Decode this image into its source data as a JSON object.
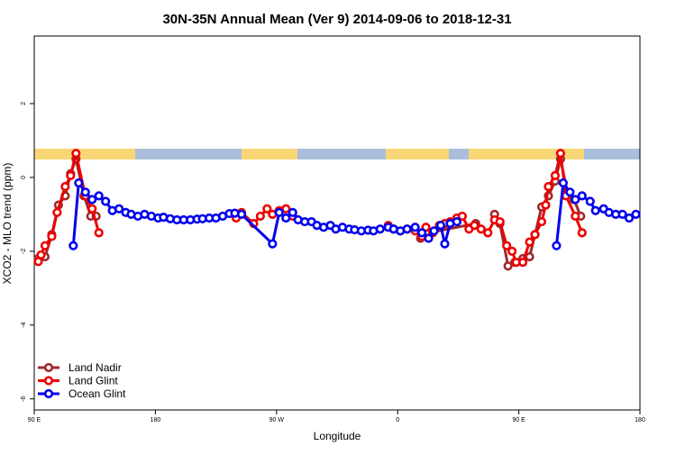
{
  "chart_data": {
    "type": "line",
    "title": "30N-35N Annual Mean (Ver 9)   2014-09-06 to 2018-12-31",
    "x_label": "Longitude",
    "y_label": "XCO2 - MLO trend (ppm)",
    "xlim": [
      90,
      540
    ],
    "ylim": [
      -6.3,
      3.83
    ],
    "xticks": [
      {
        "value": 90,
        "label": "90 E"
      },
      180,
      {
        "value": 270,
        "label": "90 W"
      },
      {
        "value": 360,
        "label": "0"
      },
      {
        "value": 450,
        "label": "90 E"
      },
      {
        "value": 540,
        "label": "180"
      }
    ],
    "yticks": [
      -6,
      -4,
      -2,
      0,
      2
    ],
    "legend": "bottom-left",
    "series": [
      {
        "name": "Land Nadir",
        "color": "#a0282d",
        "x": [
          93,
          98,
          103,
          108,
          113,
          117,
          121,
          127,
          132,
          136,
          300,
          377,
          383,
          418,
          425,
          432,
          436,
          442,
          447,
          453,
          458,
          462,
          467,
          472,
          477,
          481,
          486,
          491,
          496
        ],
        "values": [
          -2.2,
          -2.15,
          -1.55,
          -0.75,
          -0.5,
          0.1,
          0.5,
          -0.5,
          -1.05,
          -1.05,
          null,
          -1.65,
          -1.5,
          -1.25,
          null,
          -1.0,
          -1.25,
          -2.4,
          -2.3,
          -2.2,
          -2.15,
          -1.55,
          -0.8,
          -0.5,
          -0.1,
          0.5,
          -0.4,
          -0.6,
          -1.05
        ]
      },
      {
        "name": "Land Glint",
        "color": "#ee0000",
        "x": [
          93,
          95,
          98,
          103,
          107,
          113,
          117,
          121,
          128,
          133,
          138,
          190,
          240,
          244,
          253,
          258,
          263,
          267,
          272,
          277,
          282,
          320,
          353,
          357,
          362,
          367,
          373,
          378,
          381,
          386,
          391,
          395,
          399,
          404,
          408,
          413,
          417,
          422,
          427,
          432,
          436,
          441,
          445,
          448,
          453,
          458,
          462,
          467,
          470,
          472,
          477,
          481,
          485,
          492,
          497
        ],
        "values": [
          -2.28,
          -2.1,
          -1.85,
          -1.6,
          -0.95,
          -0.25,
          0.05,
          0.65,
          -0.5,
          -0.85,
          -1.5,
          null,
          -1.1,
          -0.95,
          -1.25,
          -1.05,
          -0.85,
          -1.0,
          -0.9,
          -0.85,
          -1.05,
          null,
          -1.3,
          -1.4,
          -1.45,
          -1.4,
          -1.45,
          -1.6,
          -1.35,
          -1.5,
          -1.3,
          -1.25,
          -1.2,
          -1.1,
          -1.05,
          -1.4,
          -1.3,
          -1.4,
          -1.5,
          -1.15,
          -1.2,
          -1.85,
          -2.0,
          -2.3,
          -2.3,
          -1.75,
          -1.55,
          -1.2,
          -0.75,
          -0.25,
          0.05,
          0.65,
          -0.5,
          -1.05,
          -1.5
        ]
      },
      {
        "name": "Ocean Glint",
        "color": "#0000ee",
        "x": [
          119,
          123,
          128,
          133,
          138,
          143,
          148,
          153,
          158,
          162,
          167,
          172,
          177,
          182,
          186,
          191,
          196,
          201,
          206,
          211,
          215,
          220,
          225,
          230,
          235,
          239,
          244,
          267,
          272,
          277,
          282,
          286,
          291,
          296,
          300,
          305,
          310,
          314,
          319,
          324,
          328,
          333,
          338,
          342,
          347,
          353,
          357,
          362,
          367,
          373,
          378,
          383,
          387,
          392,
          395,
          399,
          404,
          440,
          478,
          483,
          488,
          492,
          497,
          503,
          507,
          513,
          517,
          522,
          527,
          532,
          537
        ],
        "values": [
          -1.85,
          -0.15,
          -0.4,
          -0.6,
          -0.5,
          -0.65,
          -0.9,
          -0.85,
          -0.95,
          -1.0,
          -1.05,
          -1.0,
          -1.05,
          -1.1,
          -1.08,
          -1.12,
          -1.15,
          -1.15,
          -1.15,
          -1.13,
          -1.12,
          -1.1,
          -1.1,
          -1.05,
          -0.98,
          -0.97,
          -1.0,
          -1.8,
          -0.95,
          -1.1,
          -0.95,
          -1.15,
          -1.2,
          -1.2,
          -1.3,
          -1.35,
          -1.3,
          -1.4,
          -1.35,
          -1.4,
          -1.42,
          -1.45,
          -1.43,
          -1.45,
          -1.4,
          -1.35,
          -1.4,
          -1.45,
          -1.4,
          -1.35,
          -1.5,
          -1.65,
          -1.45,
          -1.3,
          -1.8,
          -1.25,
          -1.2,
          null,
          -1.85,
          -0.15,
          -0.4,
          -0.6,
          -0.5,
          -0.65,
          -0.9,
          -0.85,
          -0.95,
          -1.0,
          -1.0,
          -1.1,
          -1.0
        ]
      }
    ]
  }
}
